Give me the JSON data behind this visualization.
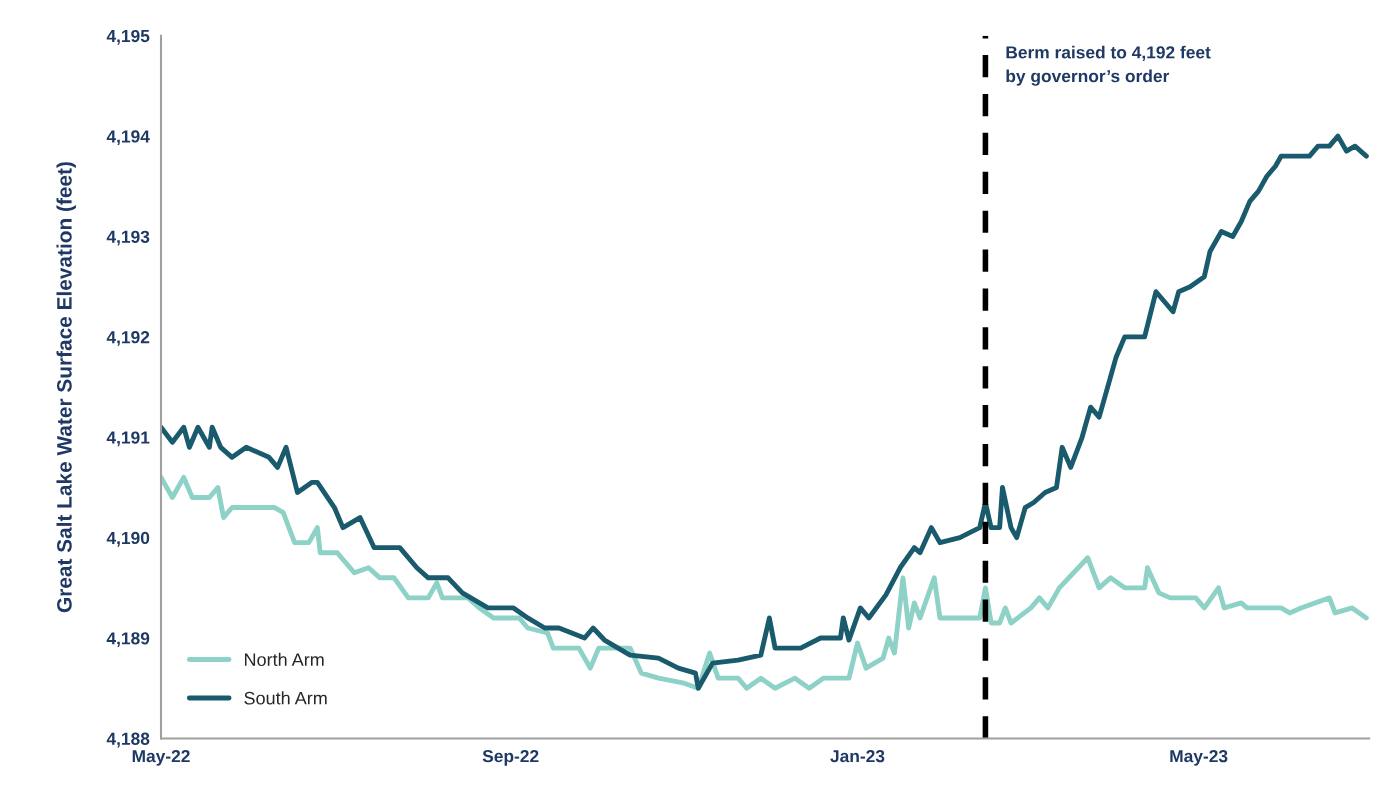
{
  "chart_data": {
    "type": "line",
    "ylabel": "Great Salt Lake Water Surface Elevation (feet)",
    "xlim": [
      "2022-05-01",
      "2023-06-30"
    ],
    "xticks": [
      {
        "value": "2022-05-01",
        "label": "May-22"
      },
      {
        "value": "2022-09-01",
        "label": "Sep-22"
      },
      {
        "value": "2023-01-01",
        "label": "Jan-23"
      },
      {
        "value": "2023-05-01",
        "label": "May-23"
      }
    ],
    "ylim": [
      4188,
      4195
    ],
    "yticks": [
      {
        "value": 4188,
        "label": "4,188"
      },
      {
        "value": 4189,
        "label": "4,189"
      },
      {
        "value": 4190,
        "label": "4,190"
      },
      {
        "value": 4191,
        "label": "4,191"
      },
      {
        "value": 4192,
        "label": "4,192"
      },
      {
        "value": 4193,
        "label": "4,193"
      },
      {
        "value": 4194,
        "label": "4,194"
      },
      {
        "value": 4195,
        "label": "4,195"
      }
    ],
    "grid": false,
    "legend": "bottom left",
    "marker": "none",
    "line_style": "solid",
    "ref_lines": [
      {
        "axis": "x",
        "value": "2023-02-15",
        "label": "Berm raised to 4,192 feet\nby governor’s order",
        "color": "#000000",
        "line_style": "dashed"
      }
    ],
    "series": [
      {
        "name": "North Arm",
        "color": "#8dd1c7",
        "x": [
          "2022-05-01",
          "2022-05-05",
          "2022-05-09",
          "2022-05-12",
          "2022-05-18",
          "2022-05-21",
          "2022-05-23",
          "2022-05-26",
          "2022-06-01",
          "2022-06-10",
          "2022-06-13",
          "2022-06-17",
          "2022-06-22",
          "2022-06-25",
          "2022-06-26",
          "2022-07-02",
          "2022-07-08",
          "2022-07-13",
          "2022-07-17",
          "2022-07-22",
          "2022-07-27",
          "2022-08-03",
          "2022-08-06",
          "2022-08-08",
          "2022-08-17",
          "2022-08-21",
          "2022-08-26",
          "2022-09-04",
          "2022-09-07",
          "2022-09-14",
          "2022-09-16",
          "2022-09-25",
          "2022-09-29",
          "2022-10-02",
          "2022-10-13",
          "2022-10-17",
          "2022-10-23",
          "2022-11-01",
          "2022-11-06",
          "2022-11-10",
          "2022-11-13",
          "2022-11-20",
          "2022-11-23",
          "2022-11-28",
          "2022-12-03",
          "2022-12-10",
          "2022-12-15",
          "2022-12-20",
          "2022-12-29",
          "2023-01-01",
          "2023-01-04",
          "2023-01-10",
          "2023-01-12",
          "2023-01-14",
          "2023-01-17",
          "2023-01-19",
          "2023-01-21",
          "2023-01-23",
          "2023-01-28",
          "2023-01-30",
          "2023-02-13",
          "2023-02-15",
          "2023-02-17",
          "2023-02-20",
          "2023-02-22",
          "2023-02-24",
          "2023-03-03",
          "2023-03-06",
          "2023-03-09",
          "2023-03-13",
          "2023-03-23",
          "2023-03-27",
          "2023-03-31",
          "2023-04-05",
          "2023-04-12",
          "2023-04-13",
          "2023-04-17",
          "2023-04-21",
          "2023-04-30",
          "2023-05-03",
          "2023-05-08",
          "2023-05-10",
          "2023-05-16",
          "2023-05-18",
          "2023-05-30",
          "2023-06-02",
          "2023-06-06",
          "2023-06-16",
          "2023-06-18",
          "2023-06-24",
          "2023-06-29"
        ],
        "values": [
          4190.6,
          4190.4,
          4190.6,
          4190.4,
          4190.4,
          4190.5,
          4190.2,
          4190.3,
          4190.3,
          4190.3,
          4190.25,
          4189.95,
          4189.95,
          4190.1,
          4189.85,
          4189.85,
          4189.65,
          4189.7,
          4189.6,
          4189.6,
          4189.4,
          4189.4,
          4189.55,
          4189.4,
          4189.4,
          4189.3,
          4189.2,
          4189.2,
          4189.1,
          4189.05,
          4188.9,
          4188.9,
          4188.7,
          4188.9,
          4188.9,
          4188.65,
          4188.6,
          4188.55,
          4188.5,
          4188.85,
          4188.6,
          4188.6,
          4188.5,
          4188.6,
          4188.5,
          4188.6,
          4188.5,
          4188.6,
          4188.6,
          4188.95,
          4188.7,
          4188.8,
          4189.0,
          4188.85,
          4189.6,
          4189.1,
          4189.35,
          4189.2,
          4189.6,
          4189.2,
          4189.2,
          4189.5,
          4189.15,
          4189.15,
          4189.3,
          4189.15,
          4189.3,
          4189.4,
          4189.3,
          4189.5,
          4189.8,
          4189.5,
          4189.6,
          4189.5,
          4189.5,
          4189.7,
          4189.45,
          4189.4,
          4189.4,
          4189.3,
          4189.5,
          4189.3,
          4189.35,
          4189.3,
          4189.3,
          4189.25,
          4189.3,
          4189.4,
          4189.25,
          4189.3,
          4189.2
        ]
      },
      {
        "name": "South Arm",
        "color": "#1a5a6d",
        "x": [
          "2022-05-01",
          "2022-05-05",
          "2022-05-09",
          "2022-05-11",
          "2022-05-14",
          "2022-05-18",
          "2022-05-19",
          "2022-05-22",
          "2022-05-26",
          "2022-05-31",
          "2022-06-08",
          "2022-06-11",
          "2022-06-14",
          "2022-06-18",
          "2022-06-23",
          "2022-06-25",
          "2022-07-01",
          "2022-07-04",
          "2022-07-10",
          "2022-07-15",
          "2022-07-24",
          "2022-07-30",
          "2022-08-03",
          "2022-08-10",
          "2022-08-15",
          "2022-08-24",
          "2022-09-02",
          "2022-09-07",
          "2022-09-13",
          "2022-09-18",
          "2022-09-27",
          "2022-09-30",
          "2022-10-04",
          "2022-10-13",
          "2022-10-23",
          "2022-10-30",
          "2022-11-05",
          "2022-11-06",
          "2022-11-11",
          "2022-11-20",
          "2022-11-28",
          "2022-12-01",
          "2022-12-03",
          "2022-12-12",
          "2022-12-19",
          "2022-12-26",
          "2022-12-27",
          "2022-12-29",
          "2023-01-02",
          "2023-01-05",
          "2023-01-11",
          "2023-01-16",
          "2023-01-21",
          "2023-01-23",
          "2023-01-27",
          "2023-01-30",
          "2023-02-06",
          "2023-02-13",
          "2023-02-15",
          "2023-02-17",
          "2023-02-20",
          "2023-02-21",
          "2023-02-24",
          "2023-02-26",
          "2023-03-01",
          "2023-03-04",
          "2023-03-08",
          "2023-03-12",
          "2023-03-14",
          "2023-03-17",
          "2023-03-21",
          "2023-03-24",
          "2023-03-27",
          "2023-03-29",
          "2023-04-02",
          "2023-04-05",
          "2023-04-12",
          "2023-04-16",
          "2023-04-22",
          "2023-04-24",
          "2023-04-28",
          "2023-05-03",
          "2023-05-05",
          "2023-05-09",
          "2023-05-13",
          "2023-05-16",
          "2023-05-19",
          "2023-05-22",
          "2023-05-25",
          "2023-05-28",
          "2023-05-30",
          "2023-06-09",
          "2023-06-12",
          "2023-06-16",
          "2023-06-19",
          "2023-06-22",
          "2023-06-25",
          "2023-06-29"
        ],
        "values": [
          4191.1,
          4190.95,
          4191.1,
          4190.9,
          4191.1,
          4190.9,
          4191.1,
          4190.9,
          4190.8,
          4190.9,
          4190.8,
          4190.7,
          4190.9,
          4190.45,
          4190.55,
          4190.55,
          4190.3,
          4190.1,
          4190.2,
          4189.9,
          4189.9,
          4189.7,
          4189.6,
          4189.6,
          4189.45,
          4189.3,
          4189.3,
          4189.2,
          4189.1,
          4189.1,
          4189.0,
          4189.1,
          4188.98,
          4188.83,
          4188.8,
          4188.7,
          4188.65,
          4188.5,
          4188.75,
          4188.78,
          4188.83,
          4189.2,
          4188.9,
          4188.9,
          4189.0,
          4189.0,
          4189.2,
          4188.98,
          4189.3,
          4189.2,
          4189.43,
          4189.7,
          4189.9,
          4189.85,
          4190.1,
          4189.95,
          4190.0,
          4190.1,
          4190.35,
          4190.1,
          4190.1,
          4190.5,
          4190.1,
          4190.0,
          4190.3,
          4190.35,
          4190.45,
          4190.5,
          4190.9,
          4190.7,
          4191.0,
          4191.3,
          4191.2,
          4191.4,
          4191.8,
          4192.0,
          4192.0,
          4192.45,
          4192.25,
          4192.45,
          4192.5,
          4192.6,
          4192.85,
          4193.05,
          4193.0,
          4193.15,
          4193.35,
          4193.45,
          4193.6,
          4193.7,
          4193.8,
          4193.8,
          4193.9,
          4193.9,
          4194.0,
          4193.85,
          4193.9,
          4193.8
        ]
      }
    ]
  }
}
